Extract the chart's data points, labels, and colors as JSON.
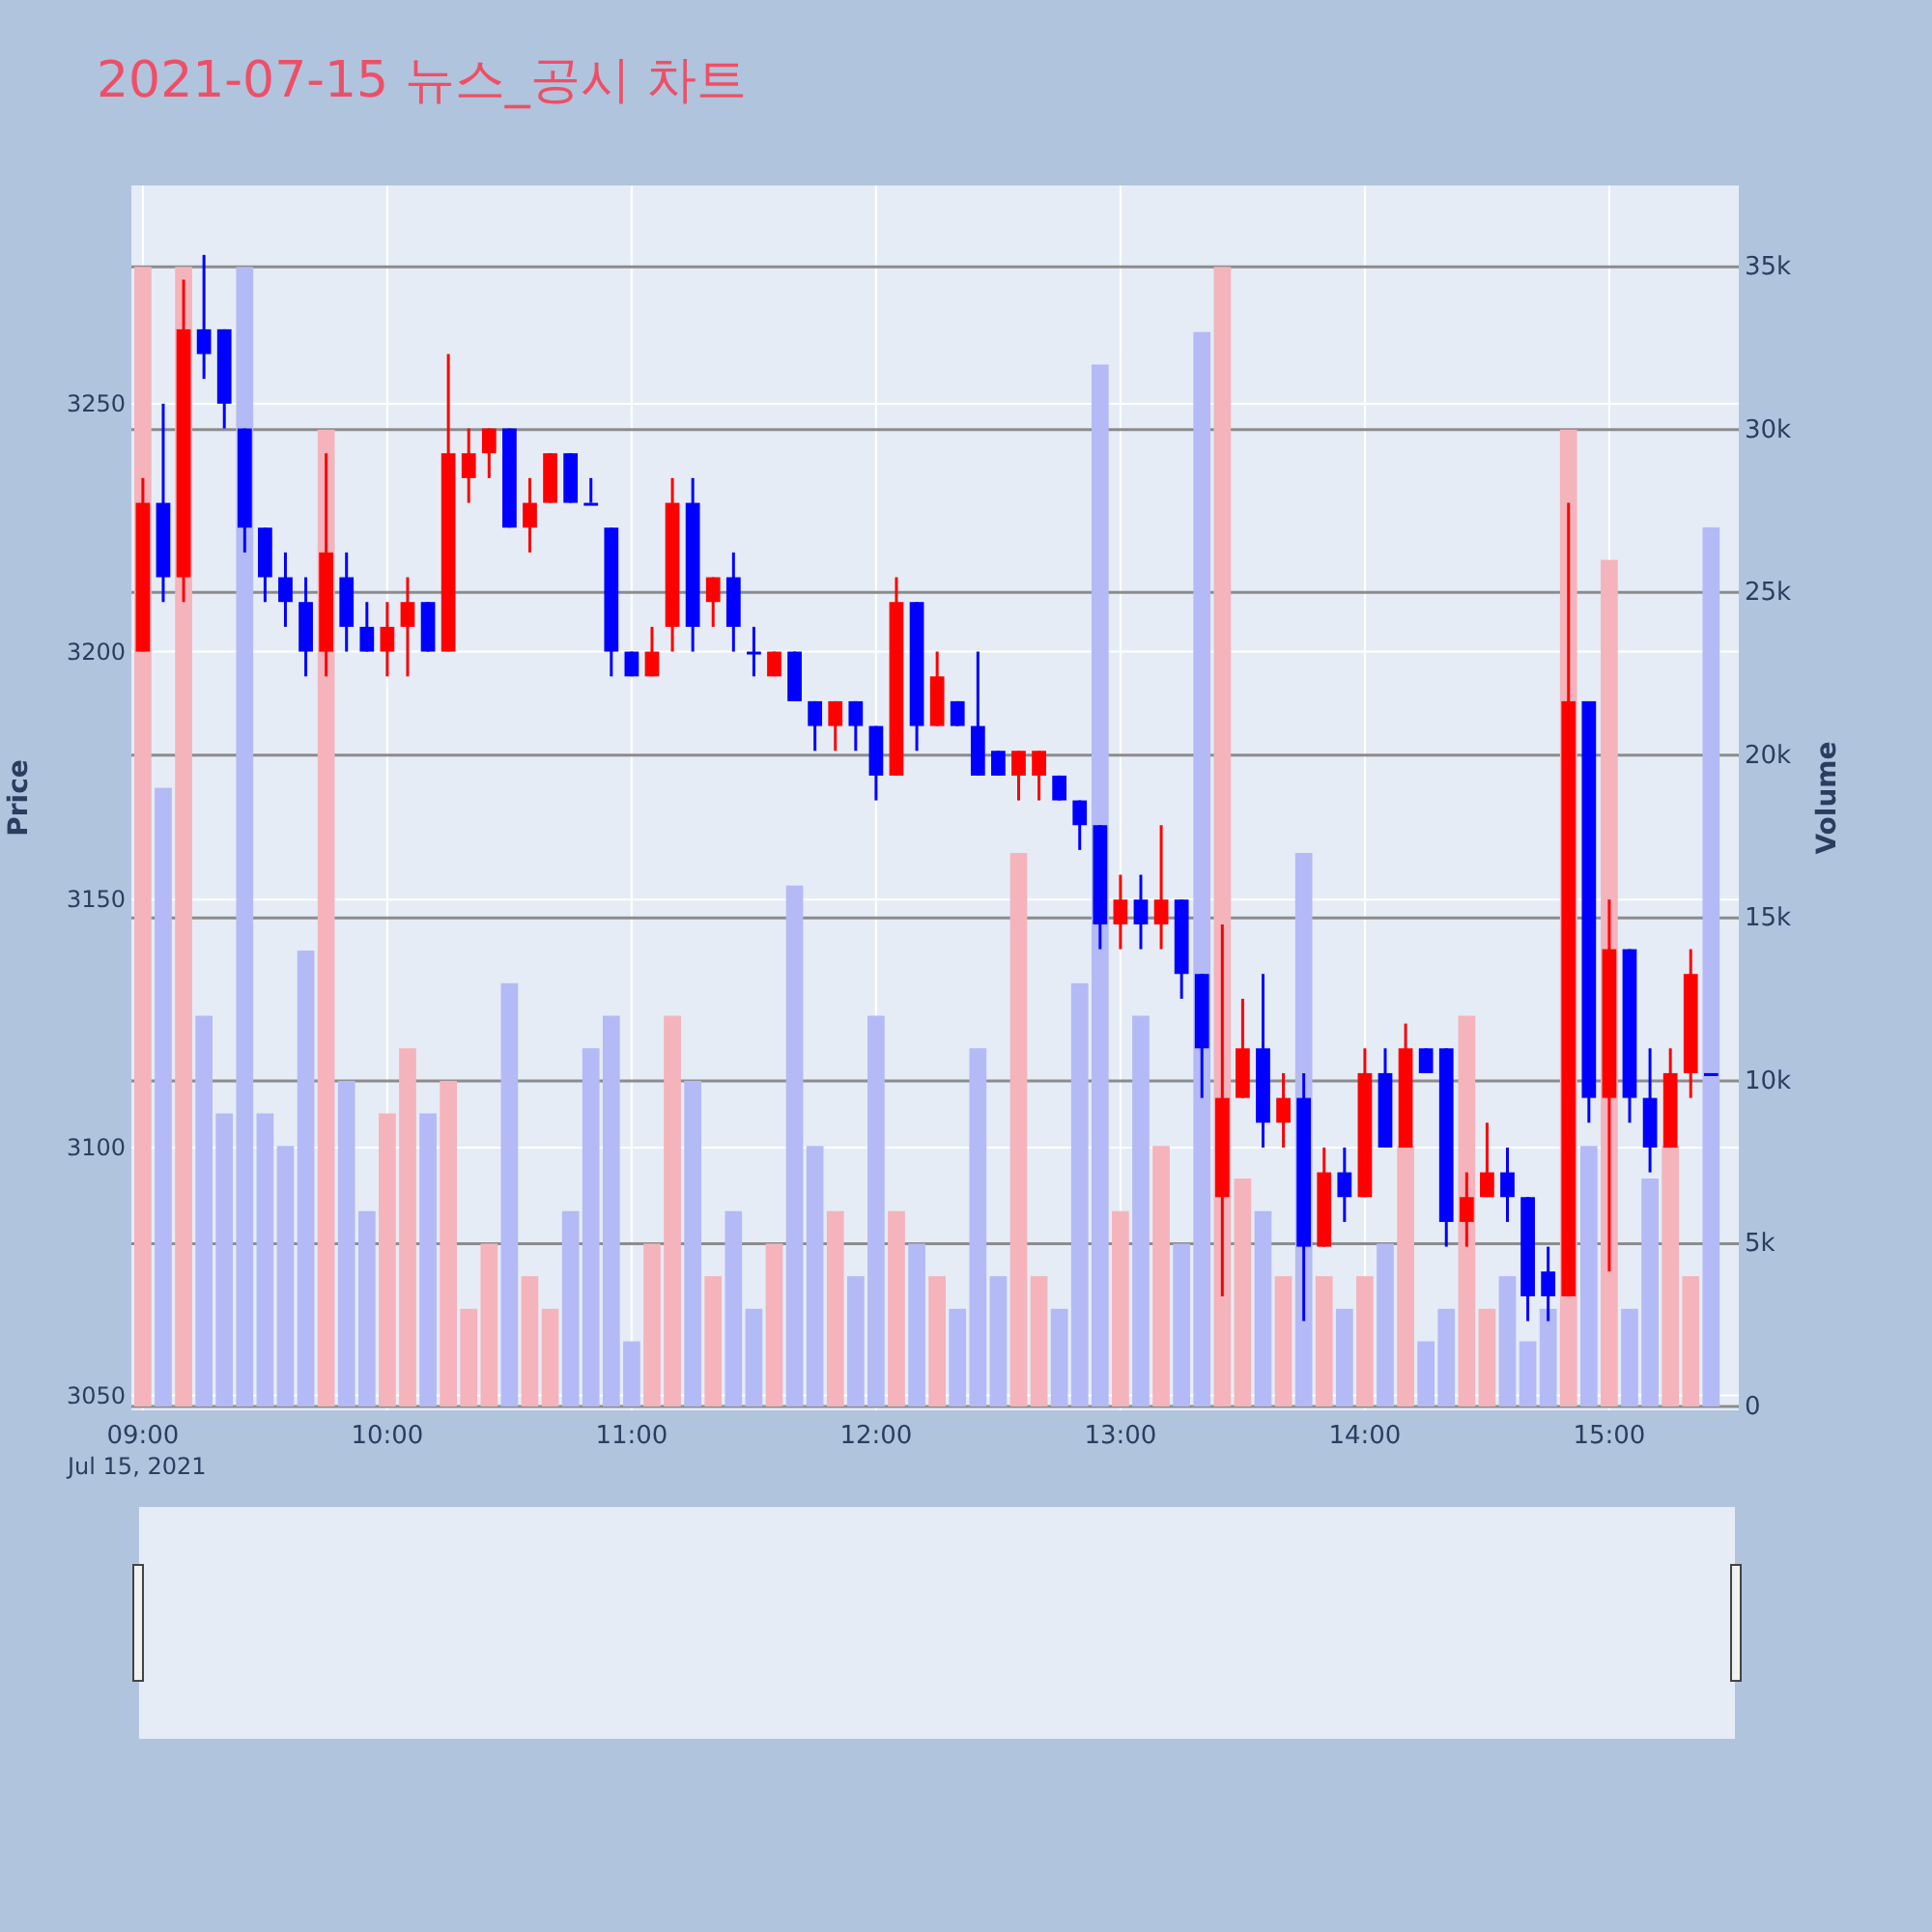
{
  "chart_data": {
    "type": "candlestick",
    "title": "2021-07-15 뉴스_공시 차트",
    "ylabel": "Price",
    "y2label": "Volume",
    "annotations": [
      "Jul 15, 2021"
    ],
    "grid": true,
    "x": [
      9,
      9.0833,
      9.1667,
      9.25,
      9.3333,
      9.4167,
      9.5,
      9.5833,
      9.6667,
      9.75,
      9.8333,
      9.9167,
      10,
      10.0833,
      10.1667,
      10.25,
      10.3333,
      10.4167,
      10.5,
      10.5833,
      10.6667,
      10.75,
      10.8333,
      10.9167,
      11,
      11.0833,
      11.1667,
      11.25,
      11.3333,
      11.4167,
      11.5,
      11.5833,
      11.6667,
      11.75,
      11.8333,
      11.9167,
      12,
      12.0833,
      12.1667,
      12.25,
      12.3333,
      12.4167,
      12.5,
      12.5833,
      12.6667,
      12.75,
      12.8333,
      12.9167,
      13,
      13.0833,
      13.1667,
      13.25,
      13.3333,
      13.4167,
      13.5,
      13.5833,
      13.6667,
      13.75,
      13.8333,
      13.9167,
      14,
      14.0833,
      14.1667,
      14.25,
      14.3333,
      14.4167,
      14.5,
      14.5833,
      14.6667,
      14.75,
      14.8333,
      14.9167,
      15,
      15.0833,
      15.1667,
      15.25,
      15.3333,
      15.4167
    ],
    "xlim": [
      8.953,
      15.53
    ],
    "xticks": [
      {
        "value": 9,
        "label": "09:00"
      },
      {
        "value": 10,
        "label": "10:00"
      },
      {
        "value": 11,
        "label": "11:00"
      },
      {
        "value": 12,
        "label": "12:00"
      },
      {
        "value": 13,
        "label": "13:00"
      },
      {
        "value": 14,
        "label": "14:00"
      },
      {
        "value": 15,
        "label": "15:00"
      }
    ],
    "ylim": [
      3047,
      3294
    ],
    "yticks": [
      3050,
      3100,
      3150,
      3200,
      3250
    ],
    "y2lim": [
      -120,
      37500
    ],
    "y2ticks": [
      {
        "value": 0,
        "label": "0"
      },
      {
        "value": 5000,
        "label": "5k"
      },
      {
        "value": 10000,
        "label": "10k"
      },
      {
        "value": 15000,
        "label": "15k"
      },
      {
        "value": 20000,
        "label": "20k"
      },
      {
        "value": 25000,
        "label": "25k"
      },
      {
        "value": 30000,
        "label": "30k"
      },
      {
        "value": 35000,
        "label": "35k"
      }
    ],
    "series": [
      {
        "type": "bar",
        "axis": "y2",
        "values": [
          35000,
          19000,
          35000,
          12000,
          9000,
          35000,
          9000,
          8000,
          14000,
          30000,
          10000,
          6000,
          9000,
          11000,
          9000,
          10000,
          3000,
          5000,
          13000,
          4000,
          3000,
          6000,
          11000,
          12000,
          2000,
          5000,
          12000,
          10000,
          4000,
          6000,
          3000,
          5000,
          16000,
          8000,
          6000,
          4000,
          12000,
          6000,
          5000,
          4000,
          3000,
          11000,
          4000,
          17000,
          4000,
          3000,
          13000,
          32000,
          6000,
          12000,
          8000,
          5000,
          33000,
          35000,
          7000,
          6000,
          4000,
          17000,
          4000,
          3000,
          4000,
          5000,
          8000,
          2000,
          3000,
          12000,
          3000,
          4000,
          2000,
          3000,
          30000,
          8000,
          26000,
          3000,
          7000,
          8000,
          4000,
          27000
        ],
        "colors": [
          "#f5b3bb",
          "#b3baf5",
          "#f5b3bb",
          "#b3baf5",
          "#b3baf5",
          "#b3baf5",
          "#b3baf5",
          "#b3baf5",
          "#b3baf5",
          "#f5b3bb",
          "#b3baf5",
          "#b3baf5",
          "#f5b3bb",
          "#f5b3bb",
          "#b3baf5",
          "#f5b3bb",
          "#f5b3bb",
          "#f5b3bb",
          "#b3baf5",
          "#f5b3bb",
          "#f5b3bb",
          "#b3baf5",
          "#b3baf5",
          "#b3baf5",
          "#b3baf5",
          "#f5b3bb",
          "#f5b3bb",
          "#b3baf5",
          "#f5b3bb",
          "#b3baf5",
          "#b3baf5",
          "#f5b3bb",
          "#b3baf5",
          "#b3baf5",
          "#f5b3bb",
          "#b3baf5",
          "#b3baf5",
          "#f5b3bb",
          "#b3baf5",
          "#f5b3bb",
          "#b3baf5",
          "#b3baf5",
          "#b3baf5",
          "#f5b3bb",
          "#f5b3bb",
          "#b3baf5",
          "#b3baf5",
          "#b3baf5",
          "#f5b3bb",
          "#b3baf5",
          "#f5b3bb",
          "#b3baf5",
          "#b3baf5",
          "#f5b3bb",
          "#f5b3bb",
          "#b3baf5",
          "#f5b3bb",
          "#b3baf5",
          "#f5b3bb",
          "#b3baf5",
          "#f5b3bb",
          "#b3baf5",
          "#f5b3bb",
          "#b3baf5",
          "#b3baf5",
          "#f5b3bb",
          "#f5b3bb",
          "#b3baf5",
          "#b3baf5",
          "#b3baf5",
          "#f5b3bb",
          "#b3baf5",
          "#f5b3bb",
          "#b3baf5",
          "#b3baf5",
          "#f5b3bb",
          "#f5b3bb",
          "#b3baf5"
        ]
      },
      {
        "type": "candlestick",
        "ohlc": [
          [
            3200,
            3235,
            3200,
            3230
          ],
          [
            3230,
            3250,
            3210,
            3215
          ],
          [
            3215,
            3275,
            3210,
            3265
          ],
          [
            3265,
            3280,
            3255,
            3260
          ],
          [
            3265,
            3265,
            3245,
            3250
          ],
          [
            3245,
            3245,
            3220,
            3225
          ],
          [
            3225,
            3225,
            3210,
            3215
          ],
          [
            3215,
            3220,
            3205,
            3210
          ],
          [
            3210,
            3215,
            3195,
            3200
          ],
          [
            3200,
            3240,
            3195,
            3220
          ],
          [
            3215,
            3220,
            3200,
            3205
          ],
          [
            3205,
            3210,
            3200,
            3200
          ],
          [
            3200,
            3210,
            3195,
            3205
          ],
          [
            3205,
            3215,
            3195,
            3210
          ],
          [
            3210,
            3210,
            3200,
            3200
          ],
          [
            3200,
            3260,
            3200,
            3240
          ],
          [
            3235,
            3245,
            3230,
            3240
          ],
          [
            3240,
            3245,
            3235,
            3245
          ],
          [
            3245,
            3245,
            3225,
            3225
          ],
          [
            3225,
            3235,
            3220,
            3230
          ],
          [
            3230,
            3240,
            3230,
            3240
          ],
          [
            3240,
            3240,
            3230,
            3230
          ],
          [
            3230,
            3235,
            3230,
            3230
          ],
          [
            3225,
            3225,
            3195,
            3200
          ],
          [
            3200,
            3200,
            3195,
            3195
          ],
          [
            3195,
            3205,
            3195,
            3200
          ],
          [
            3205,
            3235,
            3200,
            3230
          ],
          [
            3230,
            3235,
            3200,
            3205
          ],
          [
            3210,
            3215,
            3205,
            3215
          ],
          [
            3215,
            3220,
            3200,
            3205
          ],
          [
            3200,
            3205,
            3195,
            3200
          ],
          [
            3195,
            3200,
            3195,
            3200
          ],
          [
            3200,
            3200,
            3190,
            3190
          ],
          [
            3190,
            3190,
            3180,
            3185
          ],
          [
            3185,
            3190,
            3180,
            3190
          ],
          [
            3190,
            3190,
            3180,
            3185
          ],
          [
            3185,
            3185,
            3170,
            3175
          ],
          [
            3175,
            3215,
            3175,
            3210
          ],
          [
            3210,
            3210,
            3180,
            3185
          ],
          [
            3185,
            3200,
            3185,
            3195
          ],
          [
            3190,
            3190,
            3185,
            3185
          ],
          [
            3185,
            3200,
            3175,
            3175
          ],
          [
            3180,
            3180,
            3175,
            3175
          ],
          [
            3175,
            3180,
            3170,
            3180
          ],
          [
            3175,
            3180,
            3170,
            3180
          ],
          [
            3175,
            3175,
            3170,
            3170
          ],
          [
            3170,
            3170,
            3160,
            3165
          ],
          [
            3165,
            3165,
            3140,
            3145
          ],
          [
            3145,
            3155,
            3140,
            3150
          ],
          [
            3150,
            3155,
            3140,
            3145
          ],
          [
            3145,
            3165,
            3140,
            3150
          ],
          [
            3150,
            3150,
            3130,
            3135
          ],
          [
            3135,
            3135,
            3110,
            3120
          ],
          [
            3090,
            3145,
            3070,
            3110
          ],
          [
            3110,
            3130,
            3110,
            3120
          ],
          [
            3120,
            3135,
            3100,
            3105
          ],
          [
            3105,
            3115,
            3100,
            3110
          ],
          [
            3110,
            3115,
            3065,
            3080
          ],
          [
            3080,
            3100,
            3080,
            3095
          ],
          [
            3095,
            3100,
            3085,
            3090
          ],
          [
            3090,
            3120,
            3090,
            3115
          ],
          [
            3115,
            3120,
            3100,
            3100
          ],
          [
            3100,
            3125,
            3100,
            3120
          ],
          [
            3120,
            3120,
            3115,
            3115
          ],
          [
            3120,
            3120,
            3080,
            3085
          ],
          [
            3085,
            3095,
            3080,
            3090
          ],
          [
            3090,
            3105,
            3090,
            3095
          ],
          [
            3095,
            3100,
            3085,
            3090
          ],
          [
            3090,
            3090,
            3065,
            3070
          ],
          [
            3075,
            3080,
            3065,
            3070
          ],
          [
            3070,
            3230,
            3070,
            3190
          ],
          [
            3190,
            3190,
            3105,
            3110
          ],
          [
            3110,
            3150,
            3075,
            3140
          ],
          [
            3140,
            3140,
            3105,
            3110
          ],
          [
            3110,
            3120,
            3095,
            3100
          ],
          [
            3100,
            3120,
            3100,
            3115
          ],
          [
            3115,
            3140,
            3110,
            3135
          ],
          [
            3115,
            3115,
            3115,
            3115
          ]
        ],
        "colors": [
          "#ff0000",
          "#0000ff",
          "#ff0000",
          "#0000ff",
          "#0000ff",
          "#0000ff",
          "#0000ff",
          "#0000ff",
          "#0000ff",
          "#ff0000",
          "#0000ff",
          "#0000ff",
          "#ff0000",
          "#ff0000",
          "#0000ff",
          "#ff0000",
          "#ff0000",
          "#ff0000",
          "#0000ff",
          "#ff0000",
          "#ff0000",
          "#0000ff",
          "#0000ff",
          "#0000ff",
          "#0000ff",
          "#ff0000",
          "#ff0000",
          "#0000ff",
          "#ff0000",
          "#0000ff",
          "#0000ff",
          "#ff0000",
          "#0000ff",
          "#0000ff",
          "#ff0000",
          "#0000ff",
          "#0000ff",
          "#ff0000",
          "#0000ff",
          "#ff0000",
          "#0000ff",
          "#0000ff",
          "#0000ff",
          "#ff0000",
          "#ff0000",
          "#0000ff",
          "#0000ff",
          "#0000ff",
          "#ff0000",
          "#0000ff",
          "#ff0000",
          "#0000ff",
          "#0000ff",
          "#ff0000",
          "#ff0000",
          "#0000ff",
          "#ff0000",
          "#0000ff",
          "#ff0000",
          "#0000ff",
          "#ff0000",
          "#0000ff",
          "#ff0000",
          "#0000ff",
          "#0000ff",
          "#ff0000",
          "#ff0000",
          "#0000ff",
          "#0000ff",
          "#0000ff",
          "#ff0000",
          "#0000ff",
          "#ff0000",
          "#0000ff",
          "#0000ff",
          "#ff0000",
          "#ff0000",
          "#0000ff"
        ]
      }
    ]
  }
}
